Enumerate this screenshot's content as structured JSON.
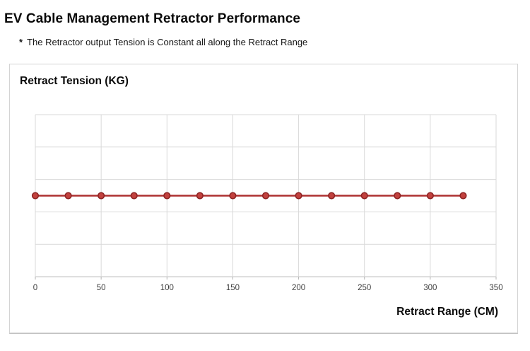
{
  "page": {
    "title": "EV Cable Management Retractor Performance",
    "note_bullet": "*",
    "note_text": "The Retractor output Tension is Constant all along the Retract Range"
  },
  "chart_data": {
    "type": "line",
    "title": "Retract Tension (KG)",
    "xlabel": "Retract Range (CM)",
    "ylabel": "Retract Tension (KG)",
    "x": [
      0,
      25,
      50,
      75,
      100,
      125,
      150,
      175,
      200,
      225,
      250,
      275,
      300,
      325
    ],
    "series": [
      {
        "name": "Retract Tension",
        "values": [
          2.5,
          2.5,
          2.5,
          2.5,
          2.5,
          2.5,
          2.5,
          2.5,
          2.5,
          2.5,
          2.5,
          2.5,
          2.5,
          2.5
        ]
      }
    ],
    "xlim": [
      0,
      350
    ],
    "ylim": [
      0,
      5
    ],
    "x_ticks": [
      0,
      50,
      100,
      150,
      200,
      250,
      300,
      350
    ],
    "x_tick_labels": [
      "0",
      "50",
      "100",
      "150",
      "200",
      "250",
      "300",
      "350"
    ],
    "y_tick_labels": [],
    "y_gridline_rows": 5,
    "grid": true,
    "legend_position": "none",
    "colors": {
      "line": "#ad3030",
      "marker_fill": "#c2413e",
      "marker_border": "#8e2323",
      "grid": "#d9d9d9",
      "axis": "#bfbfbf",
      "tick": "#b5b5b5",
      "tick_label": "#3d3d3d"
    }
  }
}
